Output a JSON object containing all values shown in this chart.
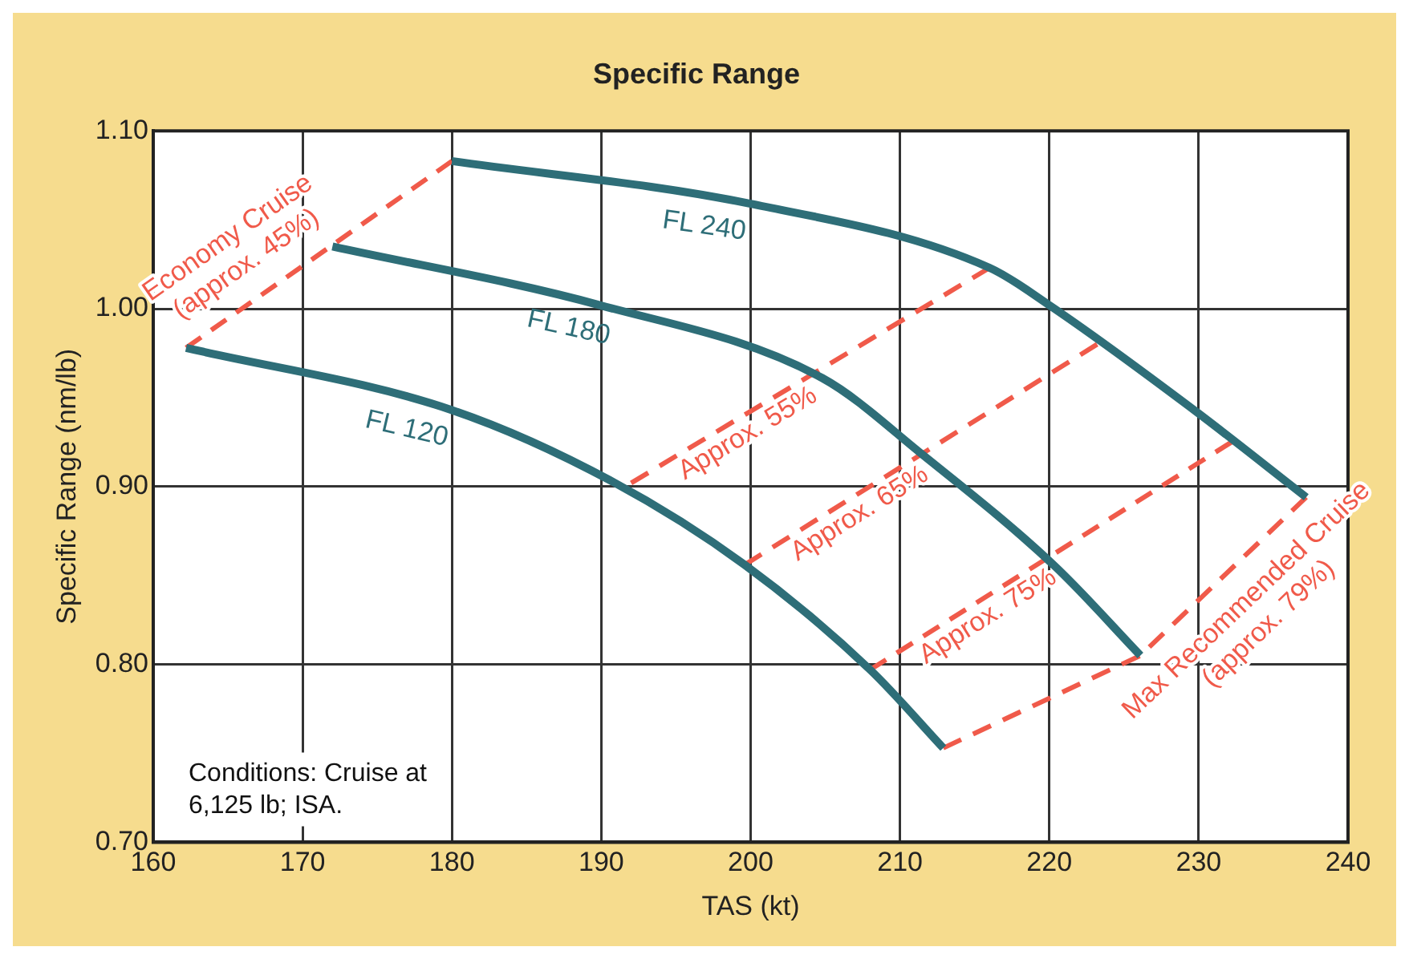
{
  "chart_data": {
    "type": "line",
    "title": "Specific Range",
    "xlabel": "TAS (kt)",
    "ylabel": "Specific Range (nm/lb)",
    "xlim": [
      160,
      240
    ],
    "xticks": [
      160,
      170,
      180,
      190,
      200,
      210,
      220,
      230,
      240
    ],
    "ylim": [
      0.7,
      1.1
    ],
    "yticks": [
      {
        "value": 0.7,
        "label": "0.70"
      },
      {
        "value": 0.8,
        "label": "0.80"
      },
      {
        "value": 0.9,
        "label": "0.90"
      },
      {
        "value": 1.0,
        "label": "1.00"
      },
      {
        "value": 1.1,
        "label": "1.10"
      }
    ],
    "grid": true,
    "legend": false,
    "marker": "none",
    "series": [
      {
        "name": "FL 240",
        "color": "#2e6e78",
        "line_style": "solid",
        "x": [
          180,
          200,
          216,
          220,
          229.7,
          237.2
        ],
        "values": [
          1.083,
          1.059,
          1.023,
          1.002,
          0.943,
          0.894
        ]
      },
      {
        "name": "FL 180",
        "color": "#2e6e78",
        "line_style": "solid",
        "x": [
          172,
          189.9,
          204.8,
          211.5,
          220.4,
          226.1
        ],
        "values": [
          1.035,
          1.002,
          0.961,
          0.918,
          0.855,
          0.805
        ]
      },
      {
        "name": "FL 120",
        "color": "#2e6e78",
        "line_style": "solid",
        "x": [
          162.2,
          180,
          190.7,
          199.6,
          208,
          212.9
        ],
        "values": [
          0.978,
          0.943,
          0.903,
          0.856,
          0.797,
          0.753
        ]
      },
      {
        "name": "Economy Cruise (approx. 45%)",
        "color": "#f05a4a",
        "line_style": "dashed",
        "x": [
          162.2,
          180
        ],
        "values": [
          0.978,
          1.083
        ]
      },
      {
        "name": "Approx. 55%",
        "color": "#f05a4a",
        "line_style": "dashed",
        "x": [
          192,
          216
        ],
        "values": [
          0.902,
          1.023
        ]
      },
      {
        "name": "Approx. 65%",
        "color": "#f05a4a",
        "line_style": "dashed",
        "x": [
          199.6,
          223.2
        ],
        "values": [
          0.856,
          0.98
        ]
      },
      {
        "name": "Approx. 75%",
        "color": "#f05a4a",
        "line_style": "dashed",
        "x": [
          208,
          232.2
        ],
        "values": [
          0.797,
          0.925
        ]
      },
      {
        "name": "Max Recommended Cruise (approx. 79%)",
        "color": "#f05a4a",
        "line_style": "dashed",
        "x": [
          212.9,
          226.1,
          237.2
        ],
        "values": [
          0.753,
          0.805,
          0.894
        ]
      }
    ],
    "annotations": [
      "Conditions: Cruise at 6,125 lb; ISA."
    ]
  }
}
